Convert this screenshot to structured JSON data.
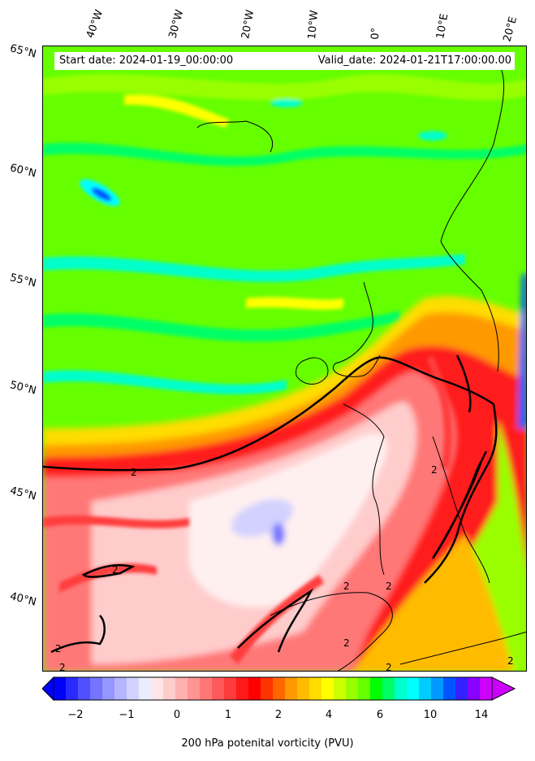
{
  "header": {
    "start_date": "Start date: 2024-01-19_00:00:00",
    "valid_date": "Valid_date: 2024-01-21T17:00:00.00"
  },
  "axes": {
    "longitude_labels": [
      "40°W",
      "30°W",
      "20°W",
      "10°W",
      "0°",
      "10°E",
      "20°E"
    ],
    "latitude_labels": [
      "65°N",
      "60°N",
      "55°N",
      "50°N",
      "45°N",
      "40°N"
    ]
  },
  "contour": {
    "level_label": "2",
    "color": "#000000"
  },
  "colorbar": {
    "label": "200 hPa potenital vorticity (PVU)",
    "tick_labels": [
      "−2",
      "−1",
      "0",
      "1",
      "2",
      "4",
      "6",
      "10",
      "14"
    ],
    "extend": "both",
    "colors": [
      "#0000ff",
      "#2a2aff",
      "#5050ff",
      "#7474ff",
      "#9696ff",
      "#b4b4ff",
      "#d2d2ff",
      "#ececff",
      "#ffe6e6",
      "#ffcccc",
      "#ffb0b0",
      "#ff9494",
      "#ff7878",
      "#ff5a5a",
      "#ff3c3c",
      "#ff1a1a",
      "#ff0000",
      "#ff3300",
      "#ff6600",
      "#ff9900",
      "#ffbb00",
      "#ffdd00",
      "#ffff00",
      "#ccff00",
      "#99ff00",
      "#66ff00",
      "#00ff00",
      "#00ff66",
      "#00ffcc",
      "#00ffff",
      "#00ccff",
      "#0099ff",
      "#0055ff",
      "#3322ff",
      "#8800ff",
      "#cc00ff"
    ],
    "under_color": "#0000ff",
    "over_color": "#cc00ff"
  },
  "field_colors": {
    "green": "#66ff00",
    "green_light": "#99ff00",
    "cyan": "#00ffcc",
    "aqua": "#00ffff",
    "blue_dark": "#0055ff",
    "yellow": "#ffff00",
    "orange": "#ff9900",
    "red": "#ff1a1a",
    "red_light": "#ff7878",
    "pink": "#ffcccc",
    "white_pink": "#fff0f0",
    "lavender": "#d2d2ff",
    "coast": "#000000"
  }
}
